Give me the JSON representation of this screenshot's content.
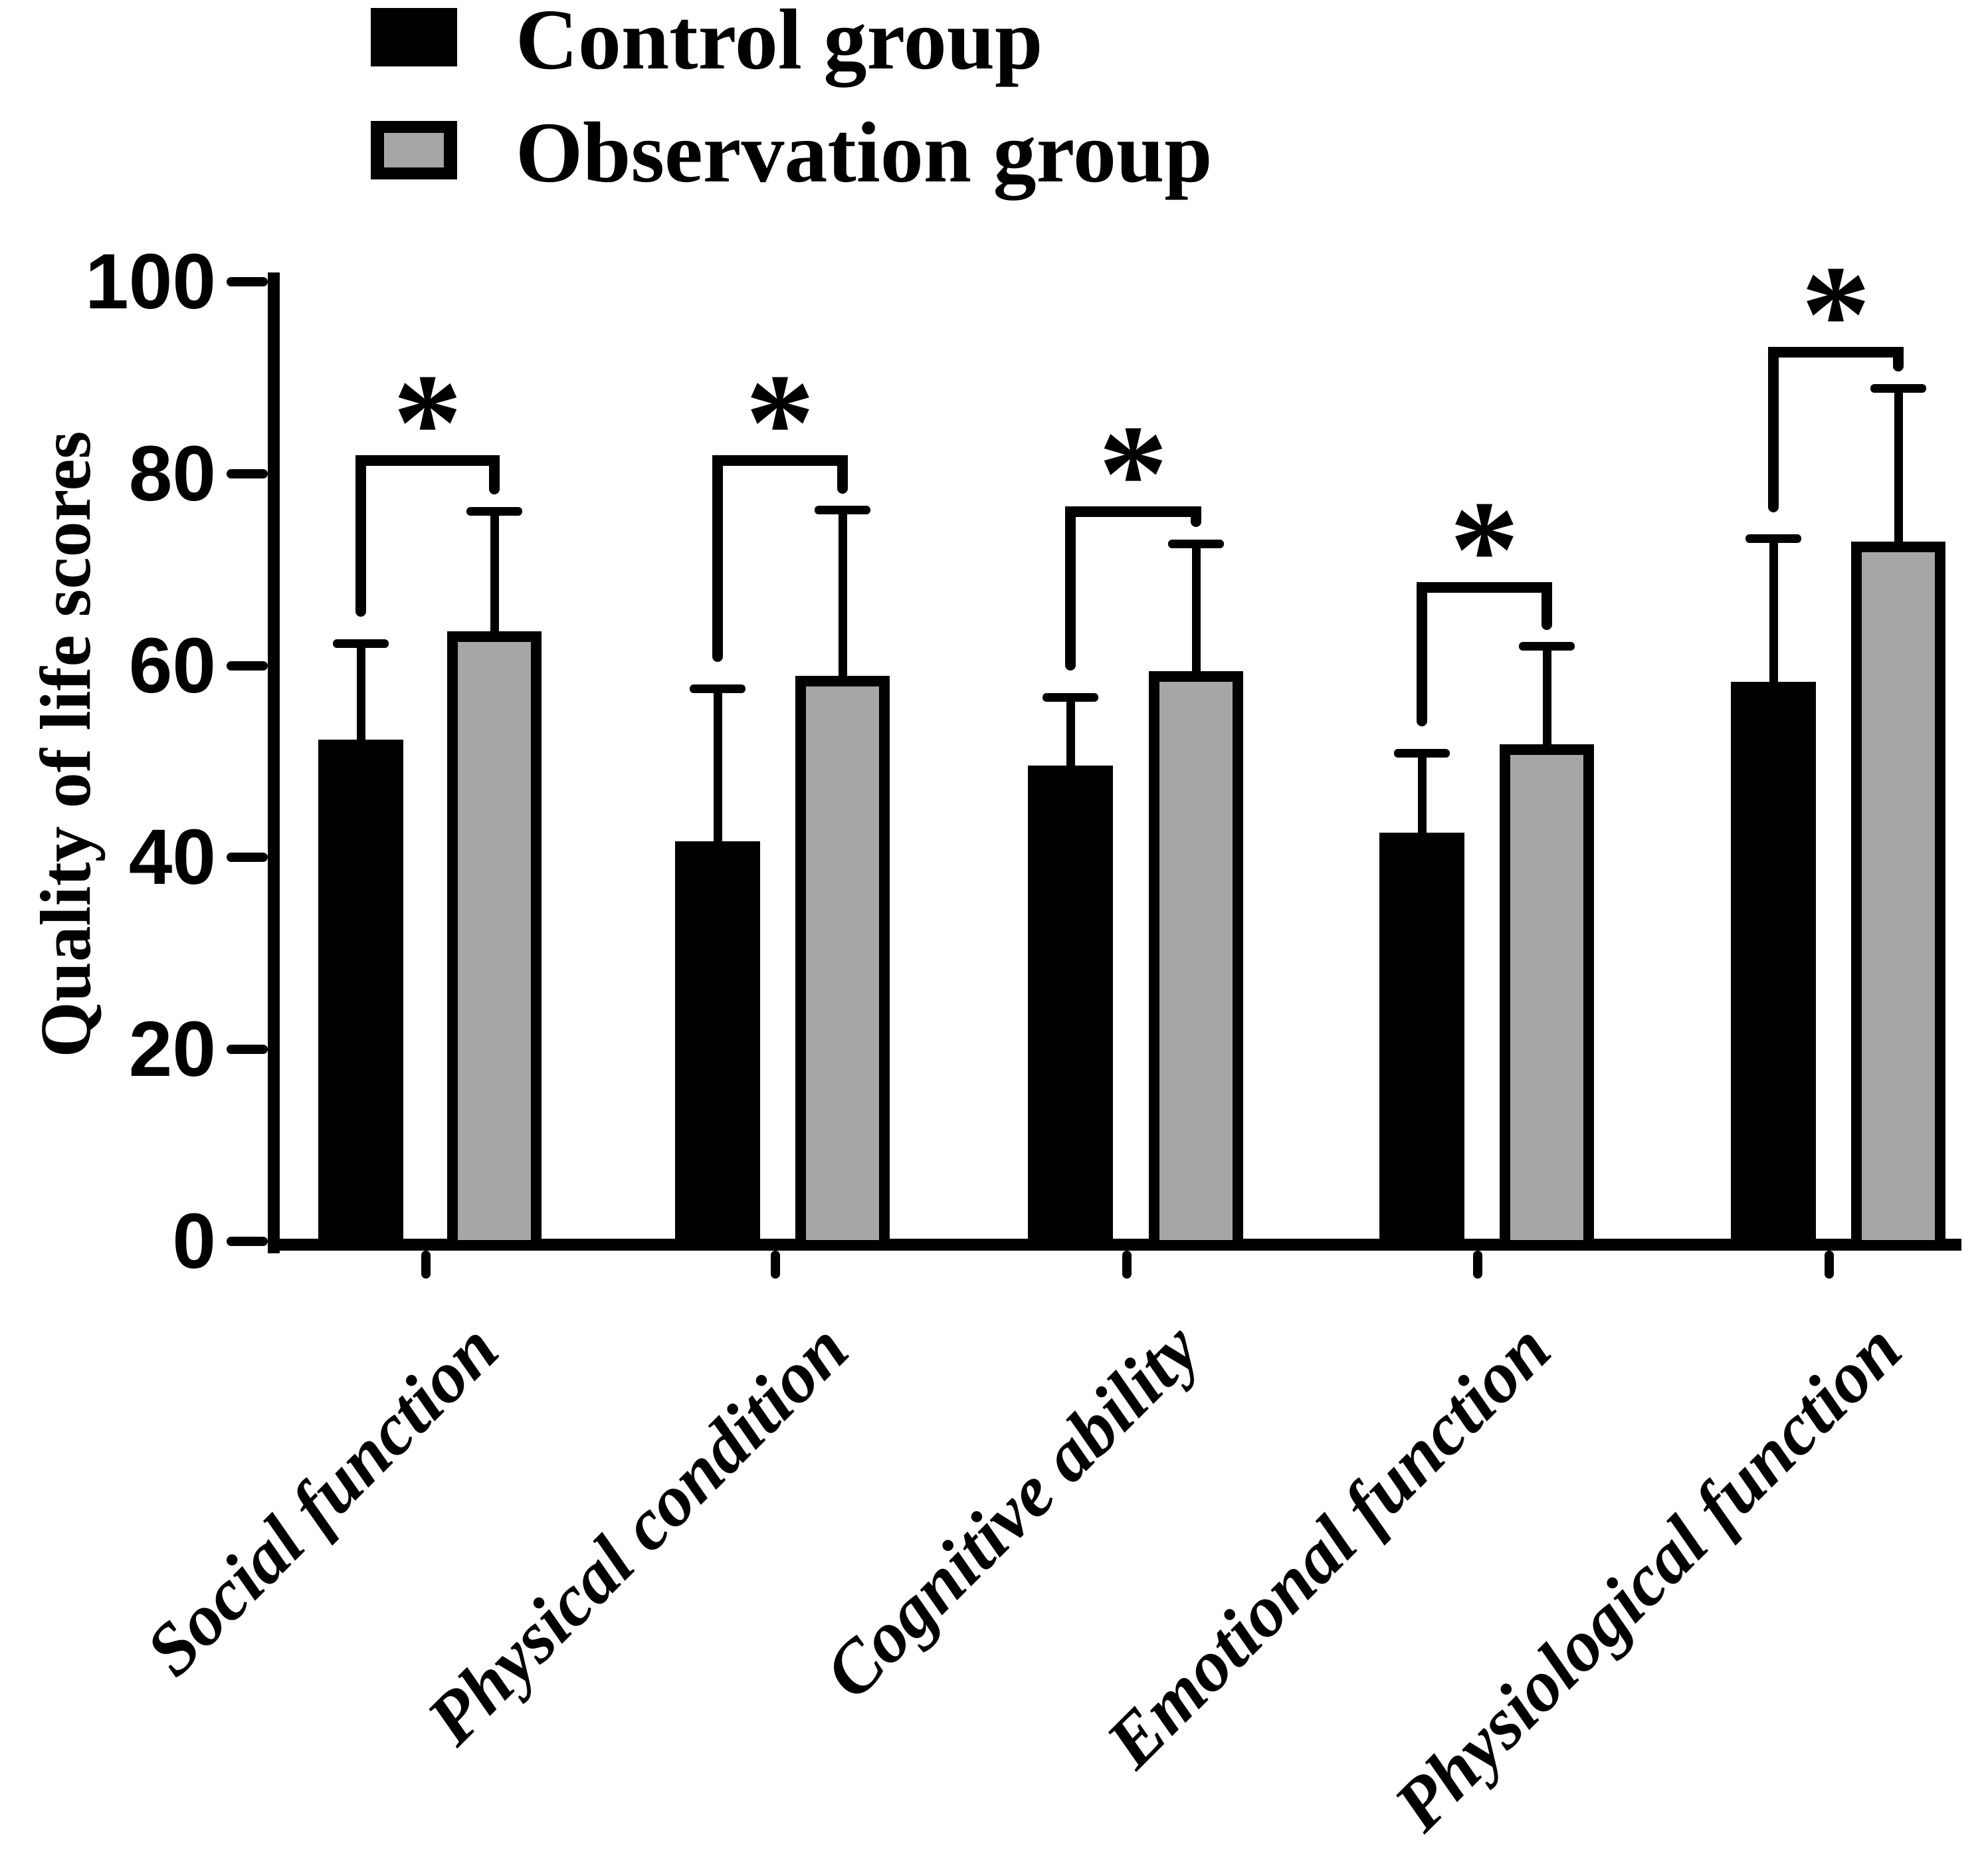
{
  "legend": {
    "items": [
      {
        "label": "Control group",
        "color": "#000000",
        "swatch": "filled-square"
      },
      {
        "label": "Observation group",
        "color": "#a6a6a6",
        "swatch": "outlined-square"
      }
    ]
  },
  "y_axis": {
    "title": "Quality of life scores",
    "ticks": [
      0,
      20,
      40,
      60,
      80,
      100
    ]
  },
  "chart_data": {
    "type": "bar",
    "title": "",
    "xlabel": "",
    "ylabel": "Quality of life scores",
    "ylim": [
      0,
      100
    ],
    "grid": false,
    "legend_position": "top-left",
    "error_bars": "upper-only, +SD",
    "categories": [
      "Social function",
      "Physical condition",
      "Cognitive ability",
      "Emotional function",
      "Physiological function"
    ],
    "series": [
      {
        "name": "Control group",
        "color": "#000000",
        "values": [
          52.3,
          41.7,
          49.6,
          42.6,
          58.3
        ],
        "errors": [
          10.0,
          15.9,
          7.1,
          8.3,
          14.9
        ]
      },
      {
        "name": "Observation group",
        "color": "#a6a6a6",
        "values": [
          63.6,
          58.9,
          59.4,
          51.8,
          72.9
        ],
        "errors": [
          12.5,
          17.3,
          13.3,
          10.2,
          16.0
        ]
      }
    ],
    "significance": [
      {
        "label": "*",
        "bracket_value": 81.9
      },
      {
        "label": "*",
        "bracket_value": 81.9
      },
      {
        "label": "*",
        "bracket_value": 76.6
      },
      {
        "label": "*",
        "bracket_value": 68.7
      },
      {
        "label": "*",
        "bracket_value": 93.2
      }
    ]
  }
}
